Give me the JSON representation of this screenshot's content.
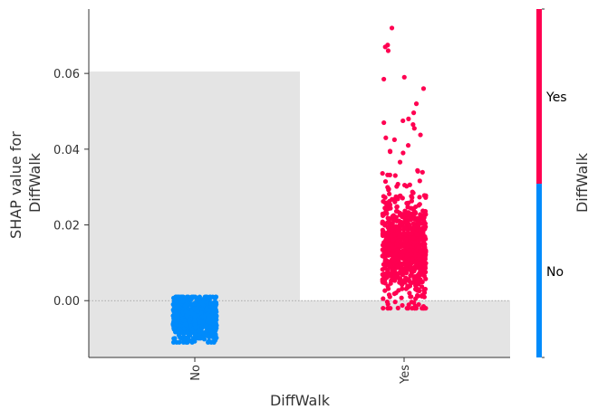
{
  "chart_data": {
    "type": "scatter",
    "subtype": "shap-dependence",
    "xlabel": "DiffWalk",
    "ylabel_lines": [
      "SHAP value for",
      "DiffWalk"
    ],
    "categories": [
      "No",
      "Yes"
    ],
    "ylim": [
      -0.015,
      0.077
    ],
    "yticks": [
      "0.06",
      "0.04",
      "0.02",
      "0.00"
    ],
    "yticks_values": [
      0.06,
      0.04,
      0.02,
      0.0
    ],
    "zero_line": true,
    "histogram": {
      "bins": [
        "No",
        "Yes"
      ],
      "relative_heights": [
        1.0,
        0.2
      ]
    },
    "series": [
      {
        "category": "No",
        "color": "#008bfb",
        "y_center": -0.0045,
        "y_spread": 0.003,
        "y_range": [
          -0.011,
          0.001
        ]
      },
      {
        "category": "Yes",
        "color": "#ff0051",
        "y_center": 0.014,
        "y_spread": 0.006,
        "y_range": [
          -0.002,
          0.072
        ],
        "outliers": [
          0.072,
          0.0675,
          0.067,
          0.066,
          0.059,
          0.0585,
          0.056,
          0.052,
          0.048,
          0.0475,
          0.047,
          0.0465,
          0.0455,
          0.043,
          0.0425,
          0.041,
          0.0395,
          0.039
        ]
      }
    ],
    "colorbar": {
      "title": "DiffWalk",
      "labels": [
        "Yes",
        "No"
      ],
      "colors": [
        "#ff0051",
        "#008bfb"
      ]
    }
  }
}
